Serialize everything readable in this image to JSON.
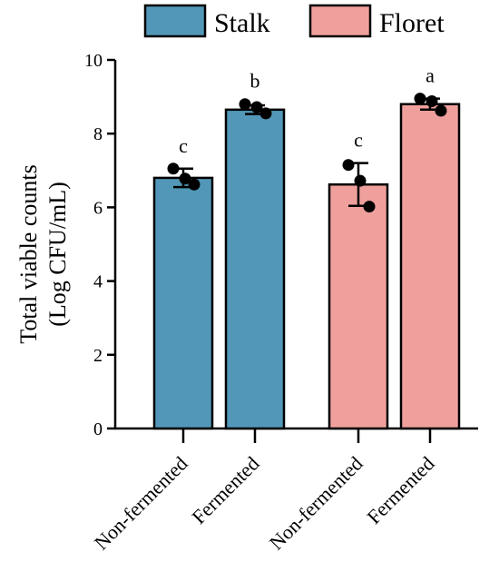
{
  "chart_data": {
    "type": "bar",
    "legend": {
      "placement": "top",
      "entries": [
        {
          "label": "Stalk",
          "color": "#5397b8"
        },
        {
          "label": "Floret",
          "color": "#f0a09c"
        }
      ]
    },
    "ylabel_line1": "Total viable  counts",
    "ylabel_line2": "(Log CFU/mL)",
    "ylim": [
      0,
      10
    ],
    "yticks": [
      0,
      2,
      4,
      6,
      8,
      10
    ],
    "grid": false,
    "bars": [
      {
        "category": "Non-fermented",
        "group": "Stalk",
        "value": 6.8,
        "error": 0.25,
        "letter": "c",
        "points": [
          7.05,
          6.78,
          6.62
        ]
      },
      {
        "category": "Fermented",
        "group": "Stalk",
        "value": 8.65,
        "error": 0.12,
        "letter": "b",
        "points": [
          8.8,
          8.72,
          8.55
        ]
      },
      {
        "category": "Non-fermented",
        "group": "Floret",
        "value": 6.62,
        "error": 0.58,
        "letter": "c",
        "points": [
          7.15,
          6.72,
          6.02
        ]
      },
      {
        "category": "Fermented",
        "group": "Floret",
        "value": 8.8,
        "error": 0.15,
        "letter": "a",
        "points": [
          8.95,
          8.88,
          8.62
        ]
      }
    ]
  }
}
